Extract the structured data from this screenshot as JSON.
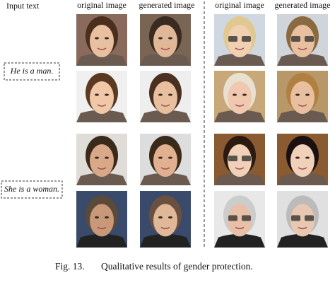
{
  "header": {
    "input_label": "Input text",
    "columns": [
      "original image",
      "generated image",
      "original image",
      "generated image"
    ]
  },
  "inputs": [
    "He is a man.",
    "She is a woman."
  ],
  "caption": {
    "label": "Fig. 13.",
    "text": "Qualitative results of gender protection."
  }
}
